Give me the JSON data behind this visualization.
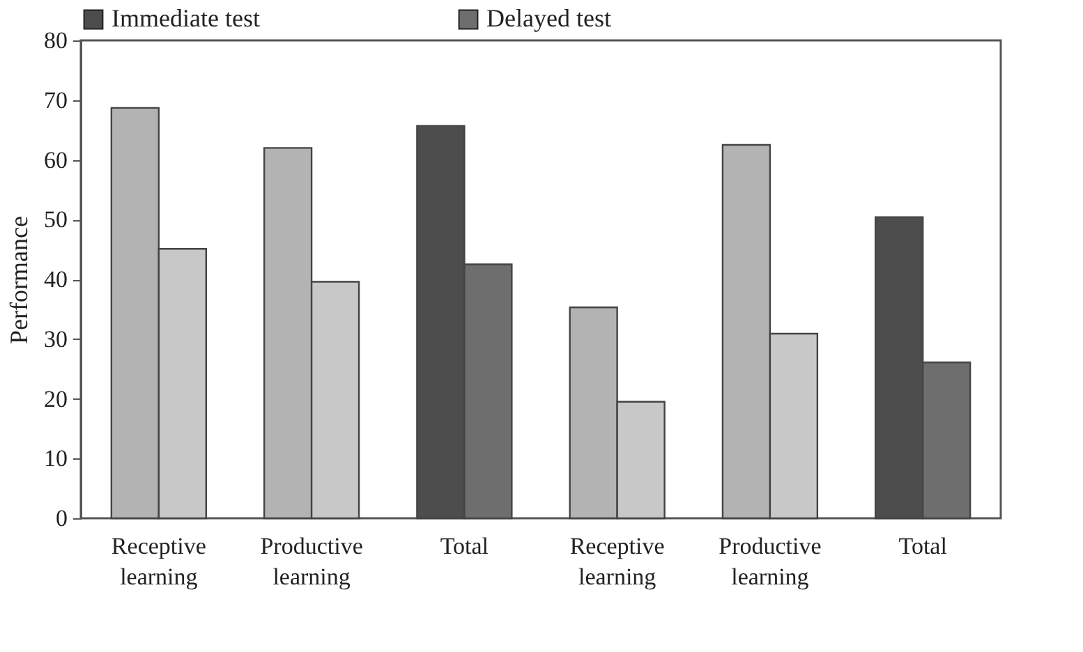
{
  "chart_data": {
    "type": "bar",
    "ylabel": "Performance",
    "categories": [
      "Receptive learning",
      "Productive learning",
      "Total",
      "Receptive learning",
      "Productive learning",
      "Total"
    ],
    "series": [
      {
        "name": "Immediate test",
        "color": "#4d4d4d",
        "colors": [
          "#b3b3b3",
          "#b3b3b3",
          "#4d4d4d",
          "#b3b3b3",
          "#b3b3b3",
          "#4d4d4d"
        ],
        "values": [
          68.7,
          62.0,
          65.7,
          35.3,
          62.5,
          50.4
        ]
      },
      {
        "name": "Delayed test",
        "color": "#6e6e6e",
        "colors": [
          "#c8c8c8",
          "#c8c8c8",
          "#6e6e6e",
          "#c8c8c8",
          "#c8c8c8",
          "#6e6e6e"
        ],
        "values": [
          45.1,
          39.6,
          42.5,
          19.5,
          30.9,
          26.1
        ]
      }
    ],
    "ylim": [
      0,
      80
    ],
    "yticks": [
      0,
      10,
      20,
      30,
      40,
      50,
      60,
      70,
      80
    ],
    "grid": false,
    "legend": "top"
  }
}
